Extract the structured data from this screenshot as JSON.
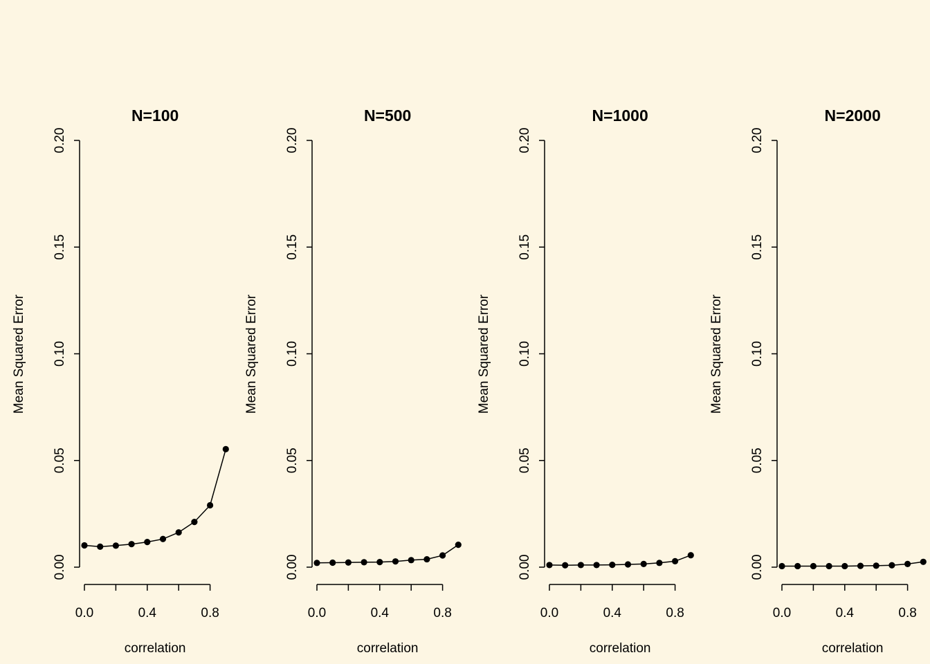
{
  "figure": {
    "background": "#fdf6e3",
    "line_color": "#000000"
  },
  "chart_data": [
    {
      "type": "line",
      "title": "N=100",
      "xlabel": "correlation",
      "ylabel": "Mean Squared Error",
      "ylim": [
        0,
        0.2
      ],
      "xlim": [
        0,
        0.9
      ],
      "xticks": [
        0.0,
        0.2,
        0.4,
        0.6,
        0.8
      ],
      "xtick_labels": [
        "0.0",
        "",
        "0.4",
        "",
        "0.8"
      ],
      "yticks": [
        0.0,
        0.05,
        0.1,
        0.15,
        0.2
      ],
      "ytick_labels": [
        "0.00",
        "0.05",
        "0.10",
        "0.15",
        "0.20"
      ],
      "grid": false,
      "x": [
        0.0,
        0.1,
        0.2,
        0.3,
        0.4,
        0.5,
        0.6,
        0.7,
        0.8,
        0.9
      ],
      "y": [
        0.0102,
        0.0096,
        0.0101,
        0.0108,
        0.0118,
        0.0132,
        0.0163,
        0.0212,
        0.029,
        0.0553
      ]
    },
    {
      "type": "line",
      "title": "N=500",
      "xlabel": "correlation",
      "ylabel": "Mean Squared Error",
      "ylim": [
        0,
        0.2
      ],
      "xlim": [
        0,
        0.9
      ],
      "xticks": [
        0.0,
        0.2,
        0.4,
        0.6,
        0.8
      ],
      "xtick_labels": [
        "0.0",
        "",
        "0.4",
        "",
        "0.8"
      ],
      "yticks": [
        0.0,
        0.05,
        0.1,
        0.15,
        0.2
      ],
      "ytick_labels": [
        "0.00",
        "0.05",
        "0.10",
        "0.15",
        "0.20"
      ],
      "grid": false,
      "x": [
        0.0,
        0.1,
        0.2,
        0.3,
        0.4,
        0.5,
        0.6,
        0.7,
        0.8,
        0.9
      ],
      "y": [
        0.002,
        0.0021,
        0.0022,
        0.0023,
        0.0024,
        0.0027,
        0.0033,
        0.0037,
        0.0055,
        0.0105
      ]
    },
    {
      "type": "line",
      "title": "N=1000",
      "xlabel": "correlation",
      "ylabel": "Mean Squared Error",
      "ylim": [
        0,
        0.2
      ],
      "xlim": [
        0,
        0.9
      ],
      "xticks": [
        0.0,
        0.2,
        0.4,
        0.6,
        0.8
      ],
      "xtick_labels": [
        "0.0",
        "",
        "0.4",
        "",
        "0.8"
      ],
      "yticks": [
        0.0,
        0.05,
        0.1,
        0.15,
        0.2
      ],
      "ytick_labels": [
        "0.00",
        "0.05",
        "0.10",
        "0.15",
        "0.20"
      ],
      "grid": false,
      "x": [
        0.0,
        0.1,
        0.2,
        0.3,
        0.4,
        0.5,
        0.6,
        0.7,
        0.8,
        0.9
      ],
      "y": [
        0.001,
        0.0009,
        0.001,
        0.001,
        0.0011,
        0.0013,
        0.0015,
        0.002,
        0.0028,
        0.0056
      ]
    },
    {
      "type": "line",
      "title": "N=2000",
      "xlabel": "correlation",
      "ylabel": "Mean Squared Error",
      "ylim": [
        0,
        0.2
      ],
      "xlim": [
        0,
        0.9
      ],
      "xticks": [
        0.0,
        0.2,
        0.4,
        0.6,
        0.8
      ],
      "xtick_labels": [
        "0.0",
        "",
        "0.4",
        "",
        "0.8"
      ],
      "yticks": [
        0.0,
        0.05,
        0.1,
        0.15,
        0.2
      ],
      "ytick_labels": [
        "0.00",
        "0.05",
        "0.10",
        "0.15",
        "0.20"
      ],
      "grid": false,
      "x": [
        0.0,
        0.1,
        0.2,
        0.3,
        0.4,
        0.5,
        0.6,
        0.7,
        0.8,
        0.9
      ],
      "y": [
        0.0005,
        0.0005,
        0.0005,
        0.0005,
        0.0005,
        0.0006,
        0.0007,
        0.0009,
        0.0015,
        0.0025
      ]
    }
  ]
}
